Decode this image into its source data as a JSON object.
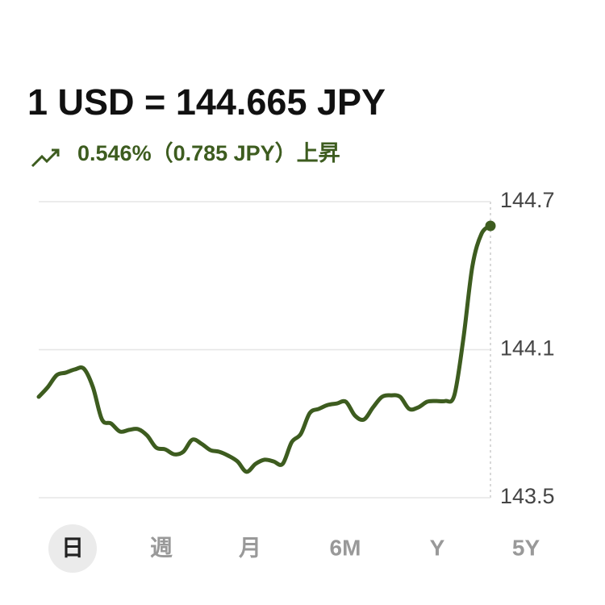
{
  "chart_data": {
    "type": "line",
    "title": "1 USD = 144.665 JPY",
    "subtitle": "0.546%（0.785 JPY）上昇",
    "color": "#3d5c1f",
    "values": [
      143.909,
      143.948,
      143.997,
      144.007,
      144.02,
      144.023,
      143.948,
      143.817,
      143.801,
      143.768,
      143.775,
      143.778,
      143.752,
      143.703,
      143.696,
      143.676,
      143.686,
      143.735,
      143.719,
      143.693,
      143.686,
      143.67,
      143.647,
      143.605,
      143.637,
      143.654,
      143.647,
      143.637,
      143.725,
      143.758,
      143.843,
      143.86,
      143.876,
      143.882,
      143.889,
      143.833,
      143.817,
      143.866,
      143.909,
      143.915,
      143.909,
      143.86,
      143.866,
      143.889,
      143.892,
      143.892,
      143.915,
      144.144,
      144.438,
      144.569,
      144.602
    ],
    "ylim": [
      143.5,
      144.7
    ],
    "yticks": [
      143.5,
      144.1,
      144.7
    ],
    "grid": true
  },
  "tabs": [
    "日",
    "週",
    "月",
    "6M",
    "Y",
    "5Y"
  ],
  "selected_tab": 0
}
